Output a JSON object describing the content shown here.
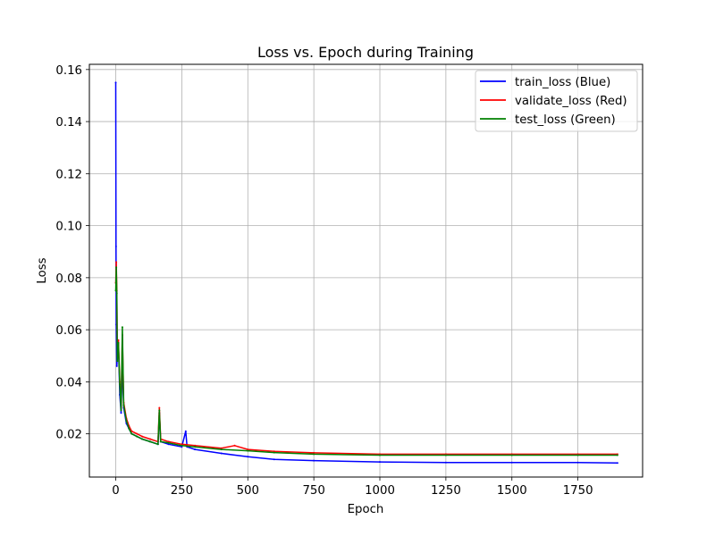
{
  "chart_data": {
    "type": "line",
    "title": "Loss vs. Epoch during Training",
    "xlabel": "Epoch",
    "ylabel": "Loss",
    "xlim": [
      -100,
      1995
    ],
    "ylim": [
      0.0034,
      0.162
    ],
    "xticks": [
      0,
      250,
      500,
      750,
      1000,
      1250,
      1500,
      1750
    ],
    "yticks": [
      0.02,
      0.04,
      0.06,
      0.08,
      0.1,
      0.12,
      0.14,
      0.16
    ],
    "ytick_labels": [
      "0.02",
      "0.04",
      "0.06",
      "0.08",
      "0.10",
      "0.12",
      "0.14",
      "0.16"
    ],
    "grid": true,
    "legend_position": "top-right",
    "series": [
      {
        "name": "train_loss (Blue)",
        "color": "#0000ff",
        "x": [
          0,
          1,
          2,
          4,
          6,
          10,
          15,
          20,
          25,
          30,
          40,
          50,
          60,
          80,
          100,
          130,
          160,
          165,
          170,
          200,
          250,
          265,
          270,
          300,
          400,
          500,
          600,
          750,
          1000,
          1250,
          1500,
          1750,
          1900
        ],
        "y": [
          0.155,
          0.092,
          0.062,
          0.046,
          0.05,
          0.055,
          0.035,
          0.028,
          0.048,
          0.03,
          0.024,
          0.022,
          0.02,
          0.019,
          0.018,
          0.017,
          0.016,
          0.028,
          0.017,
          0.016,
          0.015,
          0.021,
          0.015,
          0.014,
          0.0125,
          0.0112,
          0.0102,
          0.0097,
          0.0092,
          0.009,
          0.009,
          0.009,
          0.0088
        ]
      },
      {
        "name": "validate_loss (Red)",
        "color": "#ff0000",
        "x": [
          0,
          2,
          4,
          6,
          10,
          15,
          20,
          25,
          30,
          40,
          50,
          60,
          80,
          100,
          130,
          160,
          165,
          170,
          200,
          250,
          300,
          400,
          450,
          500,
          600,
          750,
          1000,
          1250,
          1500,
          1750,
          1900
        ],
        "y": [
          0.078,
          0.086,
          0.075,
          0.05,
          0.056,
          0.04,
          0.03,
          0.058,
          0.032,
          0.026,
          0.023,
          0.021,
          0.02,
          0.019,
          0.018,
          0.017,
          0.03,
          0.018,
          0.017,
          0.016,
          0.0155,
          0.0145,
          0.0155,
          0.014,
          0.0133,
          0.0127,
          0.0122,
          0.0122,
          0.0122,
          0.0122,
          0.0122
        ]
      },
      {
        "name": "test_loss (Green)",
        "color": "#008000",
        "x": [
          0,
          2,
          4,
          6,
          10,
          15,
          20,
          25,
          30,
          40,
          50,
          60,
          80,
          100,
          130,
          160,
          165,
          170,
          200,
          250,
          300,
          400,
          500,
          600,
          750,
          1000,
          1250,
          1500,
          1750,
          1900
        ],
        "y": [
          0.075,
          0.084,
          0.074,
          0.048,
          0.055,
          0.039,
          0.029,
          0.061,
          0.031,
          0.025,
          0.022,
          0.02,
          0.019,
          0.018,
          0.017,
          0.016,
          0.029,
          0.017,
          0.0165,
          0.0155,
          0.015,
          0.014,
          0.0135,
          0.0128,
          0.0122,
          0.0118,
          0.0118,
          0.0118,
          0.0118,
          0.0118
        ]
      }
    ]
  }
}
